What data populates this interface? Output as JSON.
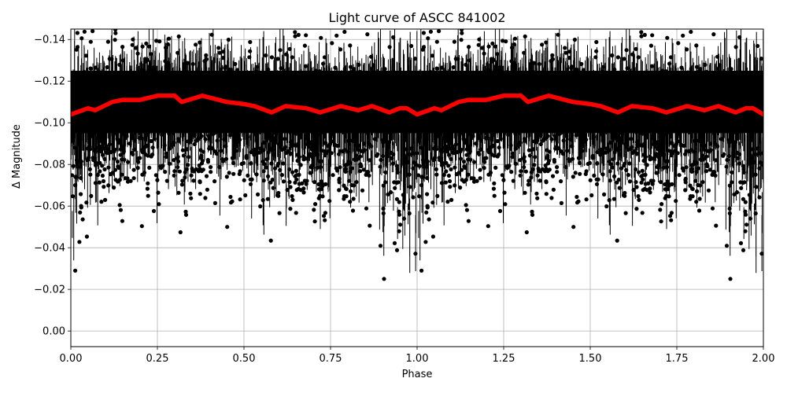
{
  "chart_data": {
    "type": "scatter",
    "title": "Light curve of ASCC 841002",
    "xlabel": "Phase",
    "ylabel": "Δ Magnitude",
    "xlim": [
      0.0,
      2.0
    ],
    "ylim": [
      0.0075,
      -0.145
    ],
    "y_inverted": true,
    "grid": true,
    "legend": null,
    "xticks": [
      "0.00",
      "0.25",
      "0.50",
      "0.75",
      "1.00",
      "1.25",
      "1.50",
      "1.75",
      "2.00"
    ],
    "yticks": [
      "−0.14",
      "−0.12",
      "−0.10",
      "−0.08",
      "−0.06",
      "−0.04",
      "−0.02",
      "0.00"
    ],
    "series": [
      {
        "name": "observations",
        "style": "black points with vertical error bars",
        "color": "#000000",
        "description": "Dense cloud of photometric points, core band roughly -0.125 to -0.095, scatter extending from about -0.145 to +0.0075 with error bars; extra dispersion near phase 0.0/1.0/2.0 and around 0.9-1.0 / 1.9-2.0",
        "core_band": [
          -0.125,
          -0.095
        ]
      },
      {
        "name": "binned mean",
        "style": "thick red line",
        "color": "#ff0000",
        "x": [
          0.0,
          0.05,
          0.07,
          0.12,
          0.15,
          0.2,
          0.25,
          0.3,
          0.32,
          0.38,
          0.45,
          0.5,
          0.53,
          0.58,
          0.62,
          0.68,
          0.72,
          0.78,
          0.83,
          0.87,
          0.92,
          0.95,
          0.97,
          1.0,
          1.05,
          1.07,
          1.12,
          1.15,
          1.2,
          1.25,
          1.3,
          1.32,
          1.38,
          1.45,
          1.5,
          1.53,
          1.58,
          1.62,
          1.68,
          1.72,
          1.78,
          1.83,
          1.87,
          1.92,
          1.95,
          1.97,
          2.0
        ],
        "y": [
          -0.104,
          -0.107,
          -0.106,
          -0.11,
          -0.111,
          -0.111,
          -0.113,
          -0.113,
          -0.11,
          -0.113,
          -0.11,
          -0.109,
          -0.108,
          -0.105,
          -0.108,
          -0.107,
          -0.105,
          -0.108,
          -0.106,
          -0.108,
          -0.105,
          -0.107,
          -0.107,
          -0.104,
          -0.107,
          -0.106,
          -0.11,
          -0.111,
          -0.111,
          -0.113,
          -0.113,
          -0.11,
          -0.113,
          -0.11,
          -0.109,
          -0.108,
          -0.105,
          -0.108,
          -0.107,
          -0.105,
          -0.108,
          -0.106,
          -0.108,
          -0.105,
          -0.107,
          -0.107,
          -0.104
        ]
      }
    ]
  }
}
